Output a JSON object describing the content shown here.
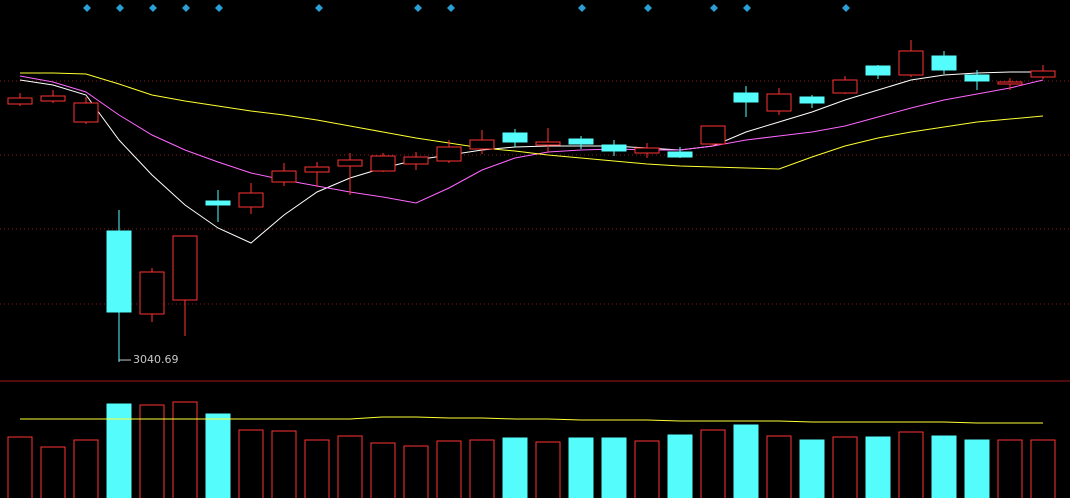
{
  "chart_data": [
    {
      "type": "candlestick",
      "open": [
        3169.7,
        3171.2,
        3160.7,
        3106.2,
        3064.7,
        3071.7,
        3121.2,
        3118.2,
        3130.7,
        3135.7,
        3138.7,
        3136.2,
        3139.7,
        3141.2,
        3147.2,
        3155.2,
        3149.2,
        3152.2,
        3149.2,
        3145.2,
        3145.7,
        3149.7,
        3175.2,
        3166.2,
        3173.2,
        3175.2,
        3188.7,
        3184.2,
        3193.7,
        3184.2,
        3179.7,
        3183.2
      ],
      "high": [
        3175.2,
        3176.7,
        3173.2,
        3116.7,
        3087.7,
        3103.7,
        3126.7,
        3130.2,
        3140.2,
        3140.7,
        3145.2,
        3145.2,
        3145.7,
        3151.7,
        3156.7,
        3157.2,
        3157.7,
        3153.7,
        3151.7,
        3150.2,
        3148.2,
        3158.7,
        3178.7,
        3177.7,
        3174.2,
        3183.7,
        3189.2,
        3201.7,
        3196.2,
        3186.7,
        3182.7,
        3189.2
      ],
      "low": [
        3168.7,
        3170.2,
        3159.7,
        3040.69,
        3060.7,
        3053.7,
        3110.7,
        3114.7,
        3128.7,
        3128.2,
        3124.2,
        3135.7,
        3136.7,
        3140.2,
        3144.7,
        3148.2,
        3145.2,
        3147.2,
        3143.7,
        3142.7,
        3142.7,
        3148.7,
        3163.2,
        3164.2,
        3167.7,
        3174.7,
        3182.2,
        3183.2,
        3184.7,
        3176.7,
        3176.7,
        3182.2
      ],
      "close": [
        3172.7,
        3173.7,
        3170.2,
        3065.7,
        3085.7,
        3103.7,
        3119.2,
        3125.2,
        3136.2,
        3138.2,
        3141.7,
        3143.7,
        3143.2,
        3148.2,
        3151.7,
        3150.7,
        3150.7,
        3149.7,
        3146.2,
        3147.7,
        3143.2,
        3158.7,
        3170.7,
        3174.7,
        3170.2,
        3181.7,
        3184.2,
        3196.2,
        3186.7,
        3181.2,
        3180.7,
        3186.2
      ],
      "up_color": "#ff3232",
      "down_color": "#54fcfc",
      "ylim": [
        3031.7,
        3221.7
      ],
      "grid_lines": [
        3181.2,
        3144.2,
        3107.2,
        3069.7
      ],
      "annotation": {
        "text": "3040.69"
      },
      "moving_averages": [
        {
          "color": "#ffffff",
          "values": [
            3181.7,
            3179.2,
            3174.2,
            3151.7,
            3134.2,
            3119.2,
            3107.7,
            3100.2,
            3114.2,
            3125.7,
            3132.7,
            3137.7,
            3141.7,
            3144.2,
            3146.7,
            3148.2,
            3148.7,
            3148.7,
            3148.7,
            3147.7,
            3146.7,
            3148.7,
            3155.7,
            3160.7,
            3165.7,
            3171.7,
            3176.7,
            3181.7,
            3184.2,
            3185.2,
            3185.7,
            3185.7
          ]
        },
        {
          "color": "#ff66ff",
          "values": [
            3183.7,
            3180.7,
            3175.7,
            3164.2,
            3154.2,
            3146.7,
            3140.7,
            3135.2,
            3131.7,
            3128.7,
            3125.7,
            3123.2,
            3120.2,
            3127.7,
            3136.7,
            3142.7,
            3145.7,
            3146.7,
            3147.2,
            3146.7,
            3146.7,
            3148.7,
            3151.7,
            3153.7,
            3155.7,
            3158.7,
            3163.2,
            3167.7,
            3171.7,
            3174.7,
            3177.7,
            3181.7
          ]
        },
        {
          "color": "#ffff33",
          "values": [
            3185.2,
            3185.2,
            3184.7,
            3179.7,
            3174.2,
            3171.2,
            3168.7,
            3166.2,
            3164.2,
            3161.7,
            3158.7,
            3155.7,
            3152.7,
            3150.2,
            3147.7,
            3146.2,
            3144.2,
            3142.7,
            3141.2,
            3139.7,
            3138.7,
            3138.2,
            3137.7,
            3137.2,
            3143.2,
            3148.7,
            3152.7,
            3155.7,
            3158.2,
            3160.7,
            3162.2,
            3163.7
          ]
        }
      ]
    },
    {
      "type": "bar",
      "values": [
        61,
        51,
        58,
        94,
        93,
        96,
        84,
        68,
        67,
        58,
        62,
        55,
        52,
        57,
        58,
        60,
        56,
        60,
        60,
        57,
        63,
        68,
        73,
        62,
        58,
        61,
        61,
        66,
        62,
        58,
        58,
        58
      ],
      "ylim": [
        0,
        115
      ],
      "moving_average": {
        "color": "#ffff33",
        "values": [
          79,
          79,
          79,
          79,
          79,
          79,
          79,
          79,
          79,
          79,
          79,
          81,
          81,
          80,
          80,
          79,
          79,
          78,
          78,
          78,
          77,
          77,
          77,
          77,
          76,
          76,
          76,
          76,
          76,
          75,
          75,
          75
        ]
      }
    }
  ]
}
